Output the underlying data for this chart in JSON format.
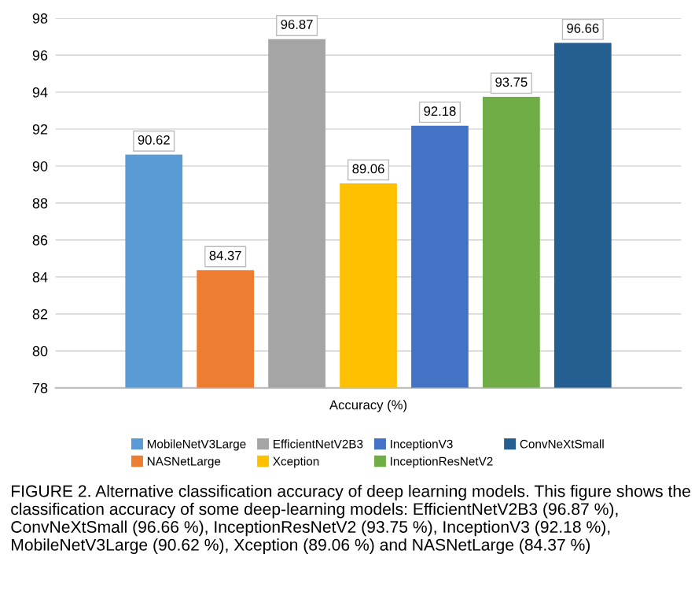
{
  "chart_data": {
    "type": "bar",
    "categories": [
      null
    ],
    "xlabel": "Accuracy (%)",
    "series": [
      {
        "name": "MobileNetV3Large",
        "color": "#5b9bd5",
        "values": [
          90.62
        ]
      },
      {
        "name": "NASNetLarge",
        "color": "#ed7d31",
        "values": [
          84.37
        ]
      },
      {
        "name": "EfficientNetV2B3",
        "color": "#a5a5a5",
        "values": [
          96.87
        ]
      },
      {
        "name": "Xception",
        "color": "#ffc000",
        "values": [
          89.06
        ]
      },
      {
        "name": "InceptionV3",
        "color": "#4472c4",
        "values": [
          92.18
        ]
      },
      {
        "name": "InceptionResNetV2",
        "color": "#70ad47",
        "values": [
          93.75
        ]
      },
      {
        "name": "ConvNeXtSmall",
        "color": "#255e91",
        "values": [
          96.66
        ]
      }
    ],
    "ylim": [
      78,
      98
    ],
    "yticks": [
      78,
      80,
      82,
      84,
      86,
      88,
      90,
      92,
      94,
      96,
      98
    ],
    "grid": "y",
    "legend": "bottom",
    "data_labels": true,
    "annotations": [
      "FIGURE 2. Alternative classification accuracy of deep learning models. This figure shows the classification accuracy of some deep-learning models: EfficientNetV2B3 (96.87 %), ConvNeXtSmall (96.66 %), InceptionResNetV2 (93.75 %), InceptionV3 (92.18 %), MobileNetV3Large (90.62 %), Xception (89.06 %) and NASNetLarge (84.37 %)"
    ]
  }
}
